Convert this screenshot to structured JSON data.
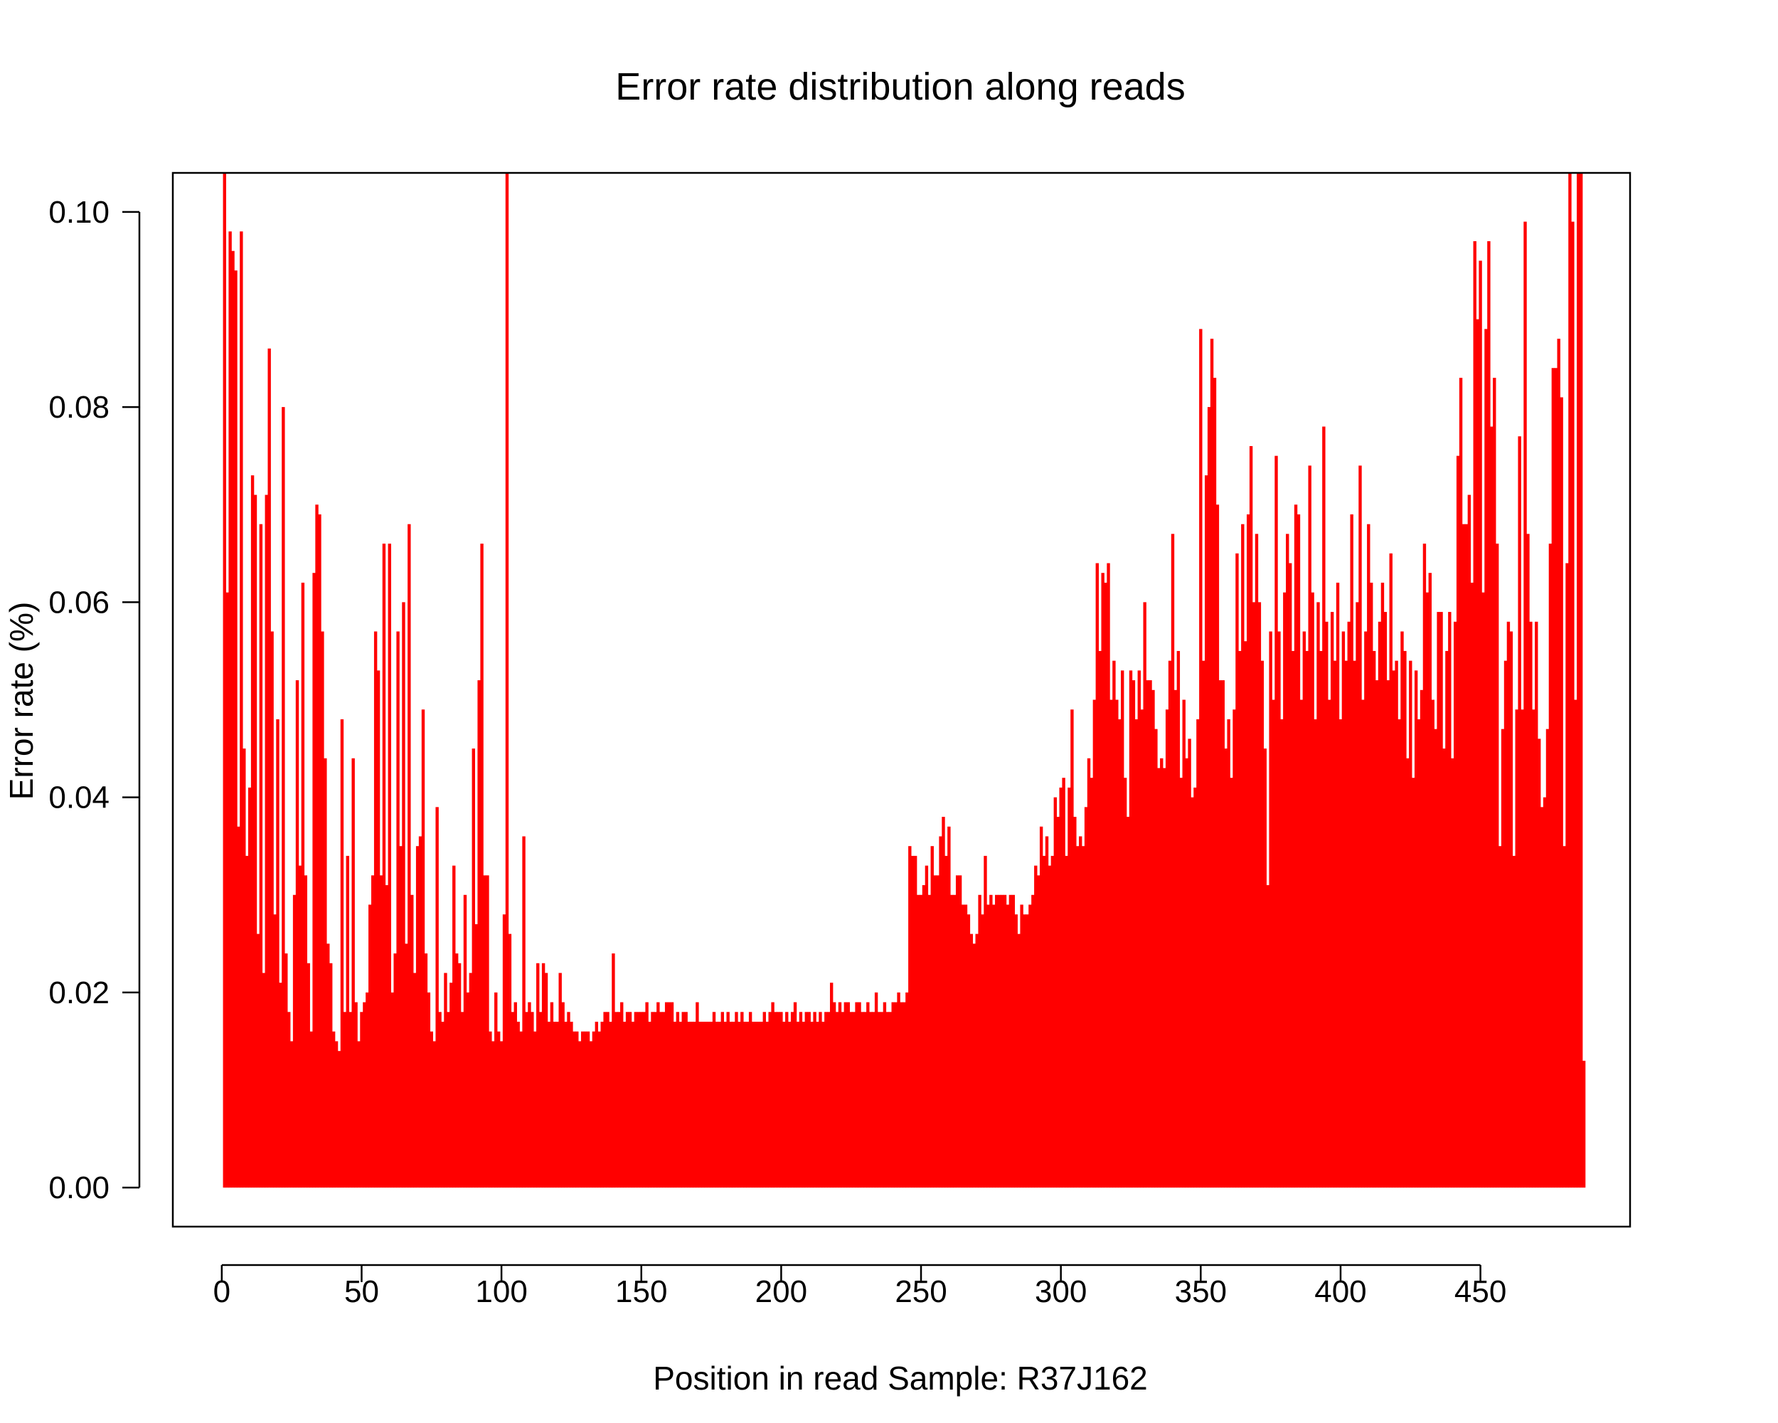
{
  "chart_data": {
    "type": "bar",
    "title": "Error rate distribution along reads",
    "xlabel": "Position in read  Sample: R37J162",
    "ylabel": "Error rate (%)",
    "xlim": [
      -17.5,
      503.5
    ],
    "ylim": [
      -0.004,
      0.104
    ],
    "x_ticks": [
      0,
      50,
      100,
      150,
      200,
      250,
      300,
      350,
      400,
      450
    ],
    "x_tick_labels": [
      "0",
      "50",
      "100",
      "150",
      "200",
      "250",
      "300",
      "350",
      "400",
      "450"
    ],
    "y_ticks": [
      0,
      0.02,
      0.04,
      0.06,
      0.08,
      0.1
    ],
    "y_tick_labels": [
      "0.00",
      "0.02",
      "0.04",
      "0.06",
      "0.08",
      "0.10"
    ],
    "bar_color": "#FF0000",
    "grid": false,
    "legend": "none",
    "x_start": 1,
    "values": [
      0.106,
      0.061,
      0.098,
      0.096,
      0.094,
      0.037,
      0.098,
      0.045,
      0.034,
      0.041,
      0.073,
      0.071,
      0.026,
      0.068,
      0.022,
      0.071,
      0.086,
      0.057,
      0.028,
      0.048,
      0.021,
      0.08,
      0.024,
      0.018,
      0.015,
      0.03,
      0.052,
      0.033,
      0.062,
      0.032,
      0.023,
      0.016,
      0.063,
      0.07,
      0.069,
      0.057,
      0.044,
      0.025,
      0.023,
      0.016,
      0.015,
      0.014,
      0.048,
      0.018,
      0.034,
      0.018,
      0.044,
      0.019,
      0.015,
      0.018,
      0.019,
      0.02,
      0.029,
      0.032,
      0.057,
      0.053,
      0.032,
      0.066,
      0.031,
      0.066,
      0.02,
      0.024,
      0.057,
      0.035,
      0.06,
      0.025,
      0.068,
      0.03,
      0.022,
      0.035,
      0.036,
      0.049,
      0.024,
      0.02,
      0.016,
      0.015,
      0.039,
      0.018,
      0.017,
      0.022,
      0.018,
      0.021,
      0.033,
      0.024,
      0.023,
      0.018,
      0.03,
      0.02,
      0.022,
      0.045,
      0.027,
      0.052,
      0.066,
      0.032,
      0.032,
      0.016,
      0.015,
      0.02,
      0.016,
      0.015,
      0.028,
      0.104,
      0.026,
      0.018,
      0.019,
      0.017,
      0.016,
      0.036,
      0.018,
      0.019,
      0.018,
      0.016,
      0.023,
      0.018,
      0.023,
      0.022,
      0.017,
      0.019,
      0.017,
      0.017,
      0.022,
      0.019,
      0.017,
      0.018,
      0.017,
      0.016,
      0.016,
      0.015,
      0.016,
      0.016,
      0.016,
      0.015,
      0.016,
      0.017,
      0.016,
      0.017,
      0.018,
      0.018,
      0.017,
      0.024,
      0.018,
      0.018,
      0.019,
      0.017,
      0.018,
      0.018,
      0.017,
      0.018,
      0.018,
      0.018,
      0.018,
      0.019,
      0.017,
      0.018,
      0.018,
      0.019,
      0.018,
      0.018,
      0.019,
      0.019,
      0.019,
      0.017,
      0.018,
      0.017,
      0.018,
      0.018,
      0.017,
      0.017,
      0.017,
      0.019,
      0.017,
      0.017,
      0.017,
      0.017,
      0.017,
      0.018,
      0.017,
      0.017,
      0.018,
      0.017,
      0.018,
      0.017,
      0.017,
      0.018,
      0.017,
      0.018,
      0.017,
      0.017,
      0.018,
      0.017,
      0.017,
      0.017,
      0.017,
      0.018,
      0.017,
      0.018,
      0.019,
      0.018,
      0.018,
      0.018,
      0.017,
      0.018,
      0.017,
      0.018,
      0.019,
      0.017,
      0.018,
      0.017,
      0.018,
      0.018,
      0.017,
      0.018,
      0.017,
      0.018,
      0.017,
      0.018,
      0.018,
      0.021,
      0.019,
      0.018,
      0.019,
      0.018,
      0.019,
      0.019,
      0.018,
      0.018,
      0.019,
      0.019,
      0.018,
      0.018,
      0.019,
      0.018,
      0.018,
      0.02,
      0.018,
      0.018,
      0.019,
      0.018,
      0.018,
      0.019,
      0.019,
      0.02,
      0.019,
      0.019,
      0.02,
      0.035,
      0.034,
      0.034,
      0.03,
      0.03,
      0.031,
      0.033,
      0.03,
      0.035,
      0.032,
      0.032,
      0.036,
      0.038,
      0.034,
      0.037,
      0.03,
      0.03,
      0.032,
      0.032,
      0.029,
      0.029,
      0.028,
      0.026,
      0.025,
      0.026,
      0.03,
      0.028,
      0.034,
      0.029,
      0.03,
      0.029,
      0.03,
      0.03,
      0.03,
      0.03,
      0.029,
      0.03,
      0.03,
      0.028,
      0.026,
      0.029,
      0.028,
      0.028,
      0.029,
      0.03,
      0.033,
      0.032,
      0.037,
      0.034,
      0.036,
      0.033,
      0.034,
      0.04,
      0.038,
      0.041,
      0.042,
      0.034,
      0.041,
      0.049,
      0.038,
      0.035,
      0.036,
      0.035,
      0.039,
      0.044,
      0.042,
      0.05,
      0.064,
      0.055,
      0.063,
      0.062,
      0.064,
      0.05,
      0.054,
      0.05,
      0.048,
      0.053,
      0.042,
      0.038,
      0.053,
      0.052,
      0.048,
      0.053,
      0.049,
      0.06,
      0.052,
      0.052,
      0.051,
      0.047,
      0.043,
      0.044,
      0.043,
      0.049,
      0.054,
      0.067,
      0.051,
      0.055,
      0.042,
      0.05,
      0.044,
      0.046,
      0.04,
      0.041,
      0.048,
      0.088,
      0.054,
      0.073,
      0.08,
      0.087,
      0.083,
      0.07,
      0.052,
      0.052,
      0.045,
      0.048,
      0.042,
      0.049,
      0.065,
      0.055,
      0.068,
      0.056,
      0.069,
      0.076,
      0.06,
      0.067,
      0.06,
      0.054,
      0.045,
      0.031,
      0.057,
      0.05,
      0.075,
      0.057,
      0.048,
      0.061,
      0.067,
      0.064,
      0.055,
      0.07,
      0.069,
      0.05,
      0.057,
      0.055,
      0.074,
      0.061,
      0.048,
      0.06,
      0.055,
      0.078,
      0.058,
      0.05,
      0.059,
      0.054,
      0.062,
      0.048,
      0.057,
      0.054,
      0.058,
      0.069,
      0.054,
      0.06,
      0.074,
      0.05,
      0.057,
      0.068,
      0.062,
      0.055,
      0.052,
      0.058,
      0.062,
      0.059,
      0.052,
      0.065,
      0.053,
      0.054,
      0.048,
      0.057,
      0.055,
      0.044,
      0.054,
      0.042,
      0.053,
      0.048,
      0.051,
      0.066,
      0.061,
      0.063,
      0.05,
      0.047,
      0.059,
      0.059,
      0.045,
      0.055,
      0.059,
      0.044,
      0.058,
      0.075,
      0.083,
      0.068,
      0.068,
      0.071,
      0.062,
      0.097,
      0.089,
      0.095,
      0.061,
      0.088,
      0.097,
      0.078,
      0.083,
      0.066,
      0.035,
      0.047,
      0.054,
      0.058,
      0.057,
      0.034,
      0.049,
      0.077,
      0.049,
      0.099,
      0.067,
      0.058,
      0.049,
      0.058,
      0.046,
      0.039,
      0.04,
      0.047,
      0.066,
      0.084,
      0.084,
      0.087,
      0.081,
      0.035,
      0.064,
      0.105,
      0.099,
      0.05,
      0.104,
      0.105,
      0.013
    ]
  }
}
